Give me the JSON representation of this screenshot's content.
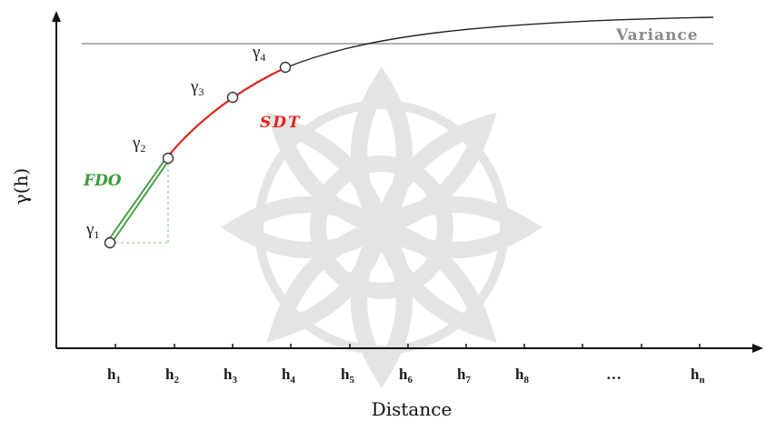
{
  "diagram": {
    "y_axis_label": "γ(h)",
    "x_axis_label": "Distance",
    "variance_label": "Variance",
    "fdo_label": "FDO",
    "sdt_label": "SDT",
    "ellipsis": "…",
    "ticks": [
      {
        "main": "h",
        "sub": "1"
      },
      {
        "main": "h",
        "sub": "2"
      },
      {
        "main": "h",
        "sub": "3"
      },
      {
        "main": "h",
        "sub": "4"
      },
      {
        "main": "h",
        "sub": "5"
      },
      {
        "main": "h",
        "sub": "6"
      },
      {
        "main": "h",
        "sub": "7"
      },
      {
        "main": "h",
        "sub": "8"
      },
      {
        "main": "h",
        "sub": "n"
      }
    ],
    "points": [
      {
        "main": "γ",
        "sub": "1"
      },
      {
        "main": "γ",
        "sub": "2"
      },
      {
        "main": "γ",
        "sub": "3"
      },
      {
        "main": "γ",
        "sub": "4"
      }
    ],
    "colors": {
      "curve": "#222222",
      "sdt": "#e0241b",
      "fdo": "#3a9a3a",
      "variance": "#9a9a9a",
      "watermark": "#cfcfcf"
    }
  }
}
